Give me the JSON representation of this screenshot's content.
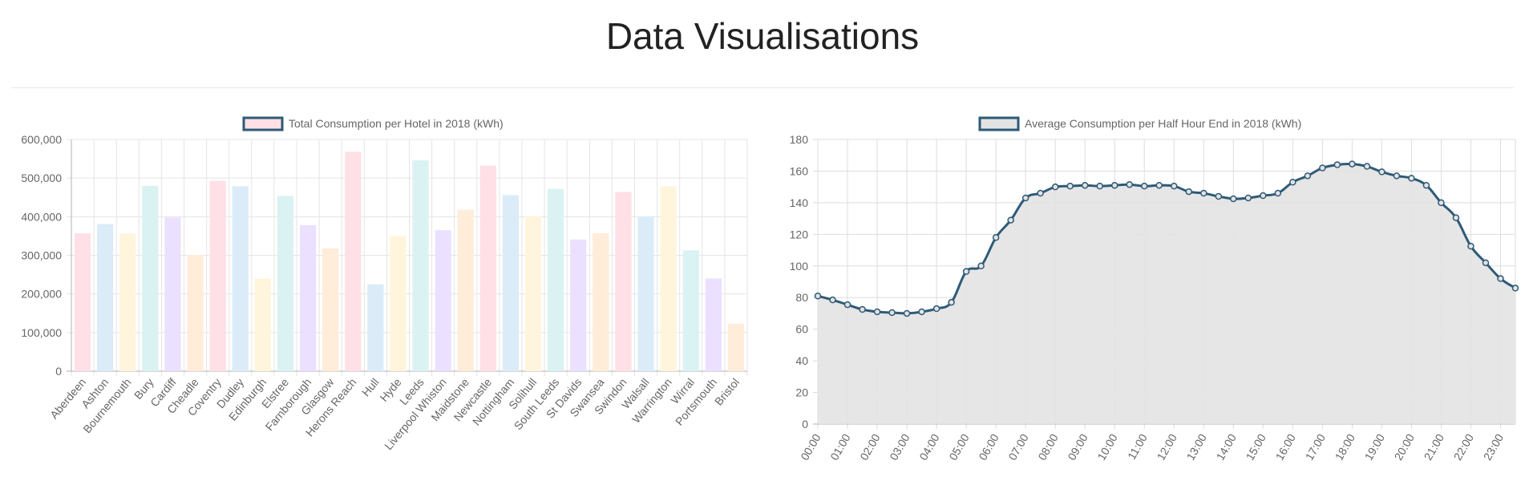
{
  "page": {
    "title": "Data Visualisations"
  },
  "chart_data": [
    {
      "type": "bar",
      "legend": "Total Consumption per Hotel in 2018 (kWh)",
      "legend_position": "top",
      "grid": true,
      "categories": [
        "Aberdeen",
        "Ashton",
        "Bournemouth",
        "Bury",
        "Cardiff",
        "Cheadle",
        "Coventry",
        "Dudley",
        "Edinburgh",
        "Elstree",
        "Farnborough",
        "Glasgow",
        "Herons Reach",
        "Hull",
        "Hyde",
        "Leeds",
        "Liverpool Whiston",
        "Maidstone",
        "Newcastle",
        "Nottingham",
        "Solihull",
        "South Leeds",
        "St Davids",
        "Swansea",
        "Swindon",
        "Walsall",
        "Warrington",
        "Wirral",
        "Portsmouth",
        "Bristol"
      ],
      "values": [
        357000,
        381000,
        357000,
        480000,
        398000,
        301000,
        493000,
        479000,
        240000,
        454000,
        378000,
        318000,
        568000,
        225000,
        350000,
        546000,
        365000,
        418000,
        532000,
        456000,
        402000,
        472000,
        341000,
        357000,
        464000,
        401000,
        479000,
        313000,
        240000,
        123000
      ],
      "ylim": [
        0,
        600000
      ],
      "y_ticks": [
        "0",
        "100,000",
        "200,000",
        "300,000",
        "400,000",
        "500,000",
        "600,000"
      ],
      "colors": {
        "fills": [
          "#ffe0e6",
          "#dbecf8",
          "#fff5dd",
          "#dbf2f2",
          "#ebe0ff",
          "#ffecd9"
        ],
        "legend_fill": "#ffe0e6",
        "legend_stroke": "#2e5a77",
        "grid": "#e5e5e5",
        "axis": "#b0b0b0",
        "tick_text": "#666666"
      }
    },
    {
      "type": "area",
      "legend": "Average Consumption per Half Hour End in 2018 (kWh)",
      "legend_position": "top",
      "grid": true,
      "x": [
        "00:00",
        "00:30",
        "01:00",
        "01:30",
        "02:00",
        "02:30",
        "03:00",
        "03:30",
        "04:00",
        "04:30",
        "05:00",
        "05:30",
        "06:00",
        "06:30",
        "07:00",
        "07:30",
        "08:00",
        "08:30",
        "09:00",
        "09:30",
        "10:00",
        "10:30",
        "11:00",
        "11:30",
        "12:00",
        "12:30",
        "13:00",
        "13:30",
        "14:00",
        "14:30",
        "15:00",
        "15:30",
        "16:00",
        "16:30",
        "17:00",
        "17:30",
        "18:00",
        "18:30",
        "19:00",
        "19:30",
        "20:00",
        "20:30",
        "21:00",
        "21:30",
        "22:00",
        "22:30",
        "23:00",
        "23:30"
      ],
      "x_ticks": [
        "00:00",
        "01:00",
        "02:00",
        "03:00",
        "04:00",
        "05:00",
        "06:00",
        "07:00",
        "08:00",
        "09:00",
        "10:00",
        "11:00",
        "12:00",
        "13:00",
        "14:00",
        "15:00",
        "16:00",
        "17:00",
        "18:00",
        "19:00",
        "20:00",
        "21:00",
        "22:00",
        "23:00"
      ],
      "values": [
        81,
        78.5,
        75.5,
        72.5,
        71,
        70.5,
        70,
        71,
        73,
        77,
        96.5,
        100,
        118,
        129,
        143,
        146,
        150,
        150.5,
        151,
        150.5,
        151,
        151.5,
        150.5,
        151,
        150.5,
        147,
        146,
        144,
        142.5,
        143,
        144.5,
        146,
        153,
        157,
        162,
        164,
        164.5,
        163,
        159.5,
        157,
        155.5,
        151,
        140,
        130.5,
        112.5,
        102,
        92,
        86
      ],
      "ylim": [
        0,
        180
      ],
      "y_ticks": [
        "0",
        "20",
        "40",
        "60",
        "80",
        "100",
        "120",
        "140",
        "160",
        "180"
      ],
      "colors": {
        "line": "#2e5a77",
        "fill": "#e3e3e3",
        "legend_fill": "#e3e3e3",
        "legend_stroke": "#2e5a77",
        "grid": "#dddddd",
        "axis": "#b0b0b0",
        "tick_text": "#666666"
      }
    }
  ]
}
